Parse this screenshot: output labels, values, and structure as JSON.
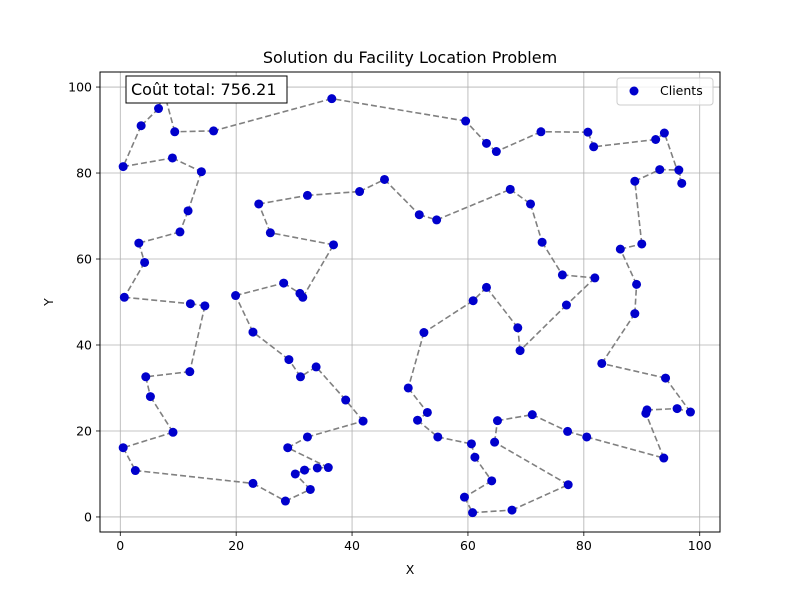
{
  "chart_data": {
    "type": "scatter",
    "title": "Solution du Facility Location Problem",
    "xlabel": "X",
    "ylabel": "Y",
    "xlim": [
      -3.5,
      103.5
    ],
    "ylim": [
      -3.5,
      103.5
    ],
    "xticks": [
      0,
      20,
      40,
      60,
      80,
      100
    ],
    "yticks": [
      0,
      20,
      40,
      60,
      80,
      100
    ],
    "grid": true,
    "legend": {
      "placement": "top-right",
      "entries": [
        "Clients"
      ]
    },
    "annotation": "Coût total: 756.21",
    "colors": {
      "points": "#0000cc",
      "route": "#808080"
    },
    "series": [
      {
        "name": "Clients",
        "points": [
          [
            7.5,
            99
          ],
          [
            6.6,
            95
          ],
          [
            3.6,
            91
          ],
          [
            0.5,
            81.5
          ],
          [
            9,
            83.5
          ],
          [
            14,
            80.3
          ],
          [
            11.7,
            71.2
          ],
          [
            10.3,
            66.3
          ],
          [
            3.2,
            63.7
          ],
          [
            4.2,
            59.2
          ],
          [
            0.7,
            51.1
          ],
          [
            12.1,
            49.6
          ],
          [
            14.6,
            49.1
          ],
          [
            12,
            33.8
          ],
          [
            4.4,
            32.6
          ],
          [
            5.2,
            28
          ],
          [
            9.1,
            19.7
          ],
          [
            0.5,
            16.1
          ],
          [
            2.6,
            10.8
          ],
          [
            22.9,
            7.8
          ],
          [
            28.5,
            3.7
          ],
          [
            32.8,
            6.4
          ],
          [
            30.2,
            10
          ],
          [
            31.8,
            10.9
          ],
          [
            34,
            11.4
          ],
          [
            35.9,
            11.5
          ],
          [
            28.9,
            16.1
          ],
          [
            32.3,
            18.6
          ],
          [
            41.9,
            22.3
          ],
          [
            38.9,
            27.2
          ],
          [
            33.8,
            34.9
          ],
          [
            31.1,
            32.6
          ],
          [
            29.1,
            36.6
          ],
          [
            22.9,
            43
          ],
          [
            19.9,
            51.5
          ],
          [
            28.2,
            54.4
          ],
          [
            31,
            52
          ],
          [
            31.5,
            51.1
          ],
          [
            36.8,
            63.3
          ],
          [
            25.9,
            66.1
          ],
          [
            23.9,
            72.8
          ],
          [
            32.3,
            74.8
          ],
          [
            41.3,
            75.7
          ],
          [
            45.6,
            78.5
          ],
          [
            51.6,
            70.3
          ],
          [
            54.6,
            69.1
          ],
          [
            67.3,
            76.2
          ],
          [
            70.8,
            72.8
          ],
          [
            72.8,
            63.9
          ],
          [
            76.3,
            56.3
          ],
          [
            81.9,
            55.6
          ],
          [
            77,
            49.3
          ],
          [
            69,
            38.7
          ],
          [
            68.6,
            44
          ],
          [
            63.2,
            53.4
          ],
          [
            60.9,
            50.3
          ],
          [
            52.4,
            42.9
          ],
          [
            49.7,
            30
          ],
          [
            53,
            24.3
          ],
          [
            51.3,
            22.5
          ],
          [
            54.8,
            18.6
          ],
          [
            60.6,
            17
          ],
          [
            61.2,
            13.9
          ],
          [
            64.1,
            8.4
          ],
          [
            59.4,
            4.6
          ],
          [
            60.8,
            1
          ],
          [
            67.6,
            1.6
          ],
          [
            77.3,
            7.5
          ],
          [
            64.6,
            17.4
          ],
          [
            65.1,
            22.4
          ],
          [
            71.1,
            23.8
          ],
          [
            77.2,
            19.9
          ],
          [
            80.5,
            18.6
          ],
          [
            93.8,
            13.7
          ],
          [
            90.7,
            24.1
          ],
          [
            90.9,
            24.9
          ],
          [
            96.1,
            25.2
          ],
          [
            98.4,
            24.4
          ],
          [
            94.1,
            32.3
          ],
          [
            83.1,
            35.7
          ],
          [
            88.8,
            47.3
          ],
          [
            89.1,
            54.1
          ],
          [
            86.3,
            62.3
          ],
          [
            90,
            63.5
          ],
          [
            88.8,
            78.1
          ],
          [
            93.1,
            80.8
          ],
          [
            96.4,
            80.7
          ],
          [
            96.9,
            77.6
          ],
          [
            93.9,
            89.3
          ],
          [
            92.4,
            87.8
          ],
          [
            81.7,
            86.1
          ],
          [
            80.7,
            89.5
          ],
          [
            72.6,
            89.6
          ],
          [
            64.9,
            85
          ],
          [
            63.2,
            86.9
          ],
          [
            59.6,
            92.1
          ],
          [
            36.5,
            97.3
          ],
          [
            16.1,
            89.8
          ],
          [
            9.4,
            89.6
          ]
        ]
      }
    ]
  }
}
